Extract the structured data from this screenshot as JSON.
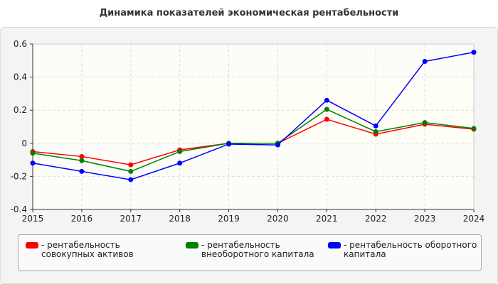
{
  "chart_data": {
    "type": "line",
    "title": "Динамика показателей экономическая рентабельности",
    "x": [
      2015,
      2016,
      2017,
      2018,
      2019,
      2020,
      2021,
      2022,
      2023,
      2024
    ],
    "ylim": [
      -0.4,
      0.6
    ],
    "yticks": [
      "0.6",
      "0.4",
      "0.2",
      "0",
      "-0.2",
      "-0.4"
    ],
    "ytick_values": [
      0.6,
      0.4,
      0.2,
      0,
      -0.2,
      -0.4
    ],
    "xticks": [
      "2015",
      "2016",
      "2017",
      "2018",
      "2019",
      "2020",
      "2021",
      "2022",
      "2023",
      "2024"
    ],
    "grid": true,
    "legend_position": "bottom",
    "series": [
      {
        "name": "- рентабельность совокупных активов",
        "color": "#ff0000",
        "values": [
          -0.05,
          -0.08,
          -0.13,
          -0.04,
          0,
          0,
          0.145,
          0.055,
          0.115,
          0.085
        ]
      },
      {
        "name": "- рентабельность внеоборотного капитала",
        "color": "#008000",
        "values": [
          -0.06,
          -0.105,
          -0.17,
          -0.05,
          0,
          0,
          0.205,
          0.07,
          0.125,
          0.09
        ]
      },
      {
        "name": "- рентабельность оборотного капитала",
        "color": "#0000ff",
        "values": [
          -0.12,
          -0.17,
          -0.22,
          -0.12,
          -0.005,
          -0.01,
          0.26,
          0.105,
          0.495,
          0.55
        ]
      }
    ]
  }
}
